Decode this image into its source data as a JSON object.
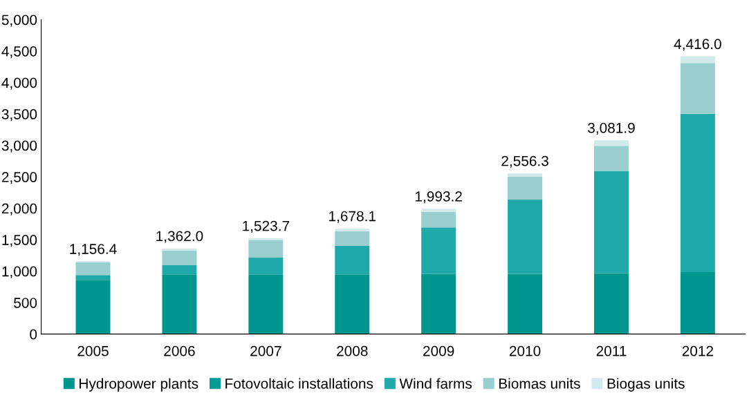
{
  "chart_data": {
    "type": "bar",
    "stacked": true,
    "categories": [
      "2005",
      "2006",
      "2007",
      "2008",
      "2009",
      "2010",
      "2011",
      "2012"
    ],
    "series": [
      {
        "name": "Hydropower plants",
        "color": "#009690",
        "values": [
          862,
          950,
          950,
          950,
          955,
          955,
          965,
          985
        ]
      },
      {
        "name": "Fotovoltaic installations",
        "color": "#029b97",
        "values": [
          0,
          0,
          0,
          0,
          0,
          0,
          0,
          0
        ]
      },
      {
        "name": "Wind farms",
        "color": "#20a9ab",
        "values": [
          77,
          144,
          265,
          453,
          740,
          1182,
          1629,
          2517
        ]
      },
      {
        "name": "Biomas units",
        "color": "#9acfcf",
        "values": [
          199,
          232,
          277,
          232,
          252,
          363,
          397,
          807
        ]
      },
      {
        "name": "Biogas units",
        "color": "#d1eaea",
        "values": [
          18.4,
          36,
          31.7,
          43.1,
          46.2,
          56.3,
          90.9,
          107
        ]
      }
    ],
    "totals": [
      "1,156.4",
      "1,362.0",
      "1,523.7",
      "1,678.1",
      "1,993.2",
      "2,556.3",
      "3,081.9",
      "4,416.0"
    ],
    "ylim": [
      0,
      5000
    ],
    "yticks": [
      0,
      {
        "value": 500,
        "label": "500"
      },
      {
        "value": 1000,
        "label": "1,000"
      },
      {
        "value": 1500,
        "label": "1,500"
      },
      {
        "value": 2000,
        "label": "2,000"
      },
      {
        "value": 2500,
        "label": "2,500"
      },
      {
        "value": 3000,
        "label": "3,000"
      },
      {
        "value": 3500,
        "label": "3,500"
      },
      {
        "value": 4000,
        "label": "4,000"
      },
      {
        "value": 4500,
        "label": "4,500"
      },
      {
        "value": 5000,
        "label": "5,000"
      }
    ],
    "grid": false,
    "legend": "bottom"
  }
}
